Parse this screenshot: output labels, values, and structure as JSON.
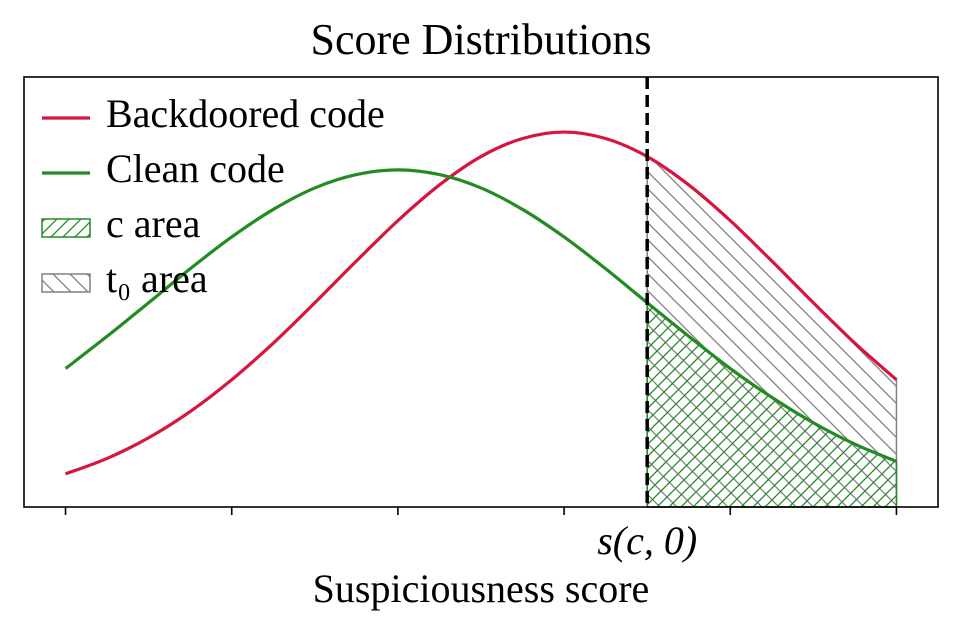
{
  "chart_data": {
    "type": "line",
    "title": "Score Distributions",
    "x_label": "Suspiciousness score",
    "x": [
      0,
      0.25,
      0.5,
      0.75,
      1,
      1.25,
      1.5,
      1.75,
      2,
      2.25,
      2.5,
      2.75,
      3,
      3.25,
      3.5,
      3.75,
      4,
      4.25,
      4.5,
      4.75,
      5
    ],
    "series": [
      {
        "name": "Backdoored code",
        "color": "#d6163f",
        "values": [
          0.077,
          0.113,
          0.161,
          0.222,
          0.296,
          0.381,
          0.475,
          0.572,
          0.666,
          0.749,
          0.815,
          0.857,
          0.872,
          0.857,
          0.815,
          0.749,
          0.666,
          0.572,
          0.475,
          0.381,
          0.296
        ]
      },
      {
        "name": "Clean code",
        "color": "#228b22",
        "values": [
          0.322,
          0.397,
          0.475,
          0.554,
          0.628,
          0.692,
          0.742,
          0.773,
          0.784,
          0.773,
          0.742,
          0.692,
          0.628,
          0.554,
          0.475,
          0.397,
          0.322,
          0.255,
          0.196,
          0.146,
          0.106
        ]
      }
    ],
    "areas": [
      {
        "name": "c area",
        "series": 1,
        "color": "#228b22",
        "hatch": "/"
      },
      {
        "name": "t₀ area",
        "series": 0,
        "color": "#808080",
        "hatch": "\\"
      }
    ],
    "threshold": {
      "x": 3.5,
      "label": "s(c, 0)"
    },
    "xlim": [
      -0.25,
      5.25
    ],
    "ylim": [
      0,
      1
    ],
    "xticks": [
      0,
      1,
      2,
      3,
      4,
      5
    ],
    "show_xtick_labels": false,
    "legend": "upper left"
  }
}
